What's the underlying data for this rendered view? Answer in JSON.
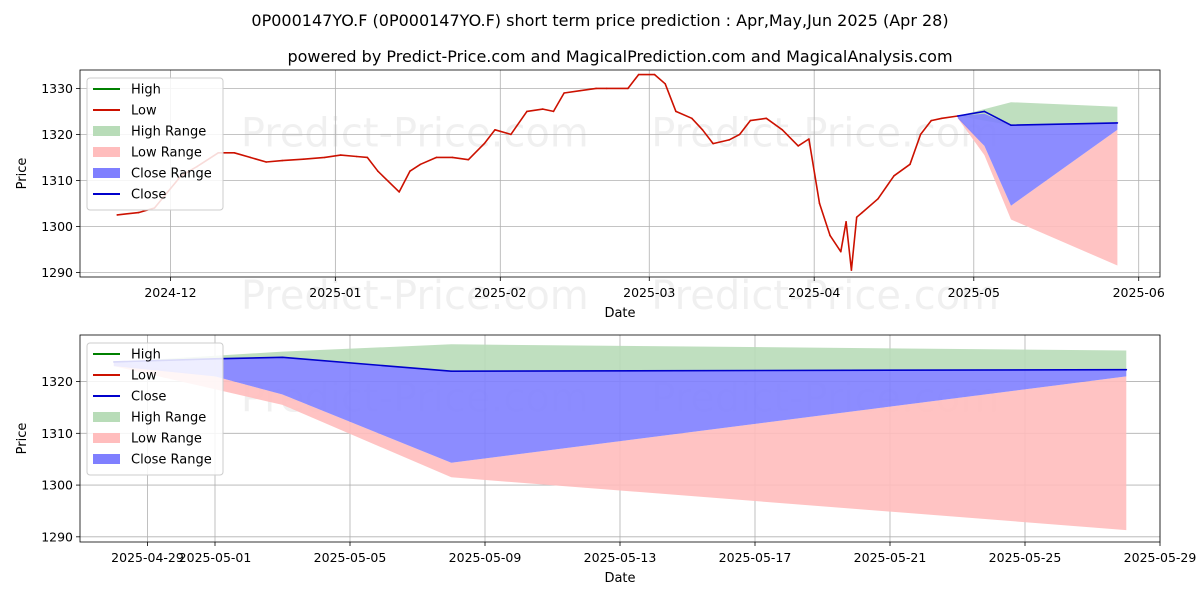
{
  "title": "0P000147YO.F (0P000147YO.F) short term price prediction : Apr,May,Jun 2025 (Apr 28)",
  "subtitle": "powered by Predict-Price.com and MagicalPrediction.com and MagicalAnalysis.com",
  "watermark": "Predict-Price.com",
  "colors": {
    "high": "#008000",
    "low": "#cc1100",
    "close": "#0000cc",
    "high_range": "#b8dcb8",
    "low_range": "#ffbdbd",
    "close_range": "#7f7fff"
  },
  "chart_data": [
    {
      "type": "line",
      "xlabel": "Date",
      "ylabel": "Price",
      "xlim": [
        "2024-11-14",
        "2025-06-05"
      ],
      "ylim": [
        1289,
        1334
      ],
      "yticks": [
        1290,
        1300,
        1310,
        1320,
        1330
      ],
      "xticks": [
        "2024-12",
        "2025-01",
        "2025-02",
        "2025-03",
        "2025-04",
        "2025-05",
        "2025-06"
      ],
      "grid": true,
      "legend_position": "top-left",
      "legend": [
        "High",
        "Low",
        "High Range",
        "Low Range",
        "Close Range",
        "Close"
      ],
      "series": [
        {
          "name": "Low",
          "x": [
            "2024-11-21",
            "2024-11-25",
            "2024-11-28",
            "2024-12-03",
            "2024-12-06",
            "2024-12-10",
            "2024-12-13",
            "2024-12-16",
            "2024-12-19",
            "2024-12-22",
            "2024-12-26",
            "2024-12-30",
            "2025-01-02",
            "2025-01-05",
            "2025-01-07",
            "2025-01-09",
            "2025-01-13",
            "2025-01-15",
            "2025-01-17",
            "2025-01-20",
            "2025-01-23",
            "2025-01-26",
            "2025-01-29",
            "2025-01-31",
            "2025-02-03",
            "2025-02-06",
            "2025-02-09",
            "2025-02-11",
            "2025-02-13",
            "2025-02-16",
            "2025-02-19",
            "2025-02-21",
            "2025-02-25",
            "2025-02-27",
            "2025-03-02",
            "2025-03-04",
            "2025-03-06",
            "2025-03-09",
            "2025-03-11",
            "2025-03-13",
            "2025-03-16",
            "2025-03-18",
            "2025-03-20",
            "2025-03-23",
            "2025-03-26",
            "2025-03-29",
            "2025-03-31",
            "2025-04-02",
            "2025-04-04",
            "2025-04-06",
            "2025-04-07",
            "2025-04-08",
            "2025-04-09",
            "2025-04-10",
            "2025-04-13",
            "2025-04-16",
            "2025-04-19",
            "2025-04-21",
            "2025-04-23",
            "2025-04-25",
            "2025-04-28"
          ],
          "values": [
            1302.5,
            1303.0,
            1304.0,
            1311.0,
            1313.0,
            1316.0,
            1316.0,
            1315.0,
            1314.0,
            1314.3,
            1314.6,
            1315.0,
            1315.5,
            1315.2,
            1315.0,
            1312.0,
            1307.5,
            1312.0,
            1313.5,
            1315.0,
            1315.0,
            1314.5,
            1318.0,
            1321.0,
            1320.0,
            1325.0,
            1325.5,
            1325.0,
            1329.0,
            1329.5,
            1330.0,
            1330.0,
            1330.0,
            1333.0,
            1333.0,
            1331.0,
            1325.0,
            1323.5,
            1321.0,
            1318.0,
            1318.8,
            1320.0,
            1323.0,
            1323.5,
            1321.0,
            1317.5,
            1319.0,
            1305.0,
            1298.0,
            1294.5,
            1301.0,
            1290.5,
            1302.0,
            1303.0,
            1306.0,
            1311.0,
            1313.5,
            1320.0,
            1323.0,
            1323.5,
            1324.0
          ]
        },
        {
          "name": "Close",
          "x": [
            "2025-04-28",
            "2025-05-03",
            "2025-05-08",
            "2025-05-28"
          ],
          "values": [
            1324.0,
            1325.0,
            1322.0,
            1322.5
          ]
        }
      ],
      "ranges": {
        "x": [
          "2025-04-28",
          "2025-05-03",
          "2025-05-08",
          "2025-05-28"
        ],
        "high_range": [
          [
            1324.0,
            1324.0
          ],
          [
            1323.0,
            1325.5
          ],
          [
            1322.0,
            1327.0
          ],
          [
            1322.5,
            1326.0
          ]
        ],
        "low_range": [
          [
            1323.5,
            1324.0
          ],
          [
            1315.5,
            1317.5
          ],
          [
            1301.5,
            1304.5
          ],
          [
            1291.5,
            1321.0
          ]
        ],
        "close_range": [
          [
            1323.5,
            1324.0
          ],
          [
            1317.5,
            1324.5
          ],
          [
            1304.5,
            1322.0
          ],
          [
            1321.0,
            1322.5
          ]
        ]
      }
    },
    {
      "type": "line",
      "xlabel": "Date",
      "ylabel": "Price",
      "xlim": [
        "2025-04-27",
        "2025-05-29"
      ],
      "ylim": [
        1289,
        1329
      ],
      "yticks": [
        1290,
        1300,
        1310,
        1320
      ],
      "xticks": [
        "2025-04-29",
        "2025-05-01",
        "2025-05-05",
        "2025-05-09",
        "2025-05-13",
        "2025-05-17",
        "2025-05-21",
        "2025-05-25",
        "2025-05-29"
      ],
      "grid": true,
      "legend_position": "top-left",
      "legend": [
        "High",
        "Low",
        "Close",
        "High Range",
        "Low Range",
        "Close Range"
      ],
      "series": [
        {
          "name": "Close",
          "x": [
            "2025-04-28",
            "2025-05-01",
            "2025-05-03",
            "2025-05-08",
            "2025-05-28"
          ],
          "values": [
            1323.8,
            1324.4,
            1324.7,
            1322.0,
            1322.3
          ]
        }
      ],
      "ranges": {
        "x": [
          "2025-04-28",
          "2025-05-01",
          "2025-05-03",
          "2025-05-08",
          "2025-05-28"
        ],
        "high_range": [
          [
            1323.8,
            1323.8
          ],
          [
            1324.4,
            1325.0
          ],
          [
            1324.7,
            1325.8
          ],
          [
            1322.0,
            1327.2
          ],
          [
            1322.3,
            1326.0
          ]
        ],
        "low_range": [
          [
            1323.0,
            1323.8
          ],
          [
            1318.5,
            1321.0
          ],
          [
            1315.5,
            1317.5
          ],
          [
            1301.5,
            1304.3
          ],
          [
            1291.3,
            1321.0
          ]
        ],
        "close_range": [
          [
            1323.0,
            1323.8
          ],
          [
            1321.0,
            1324.4
          ],
          [
            1317.5,
            1324.7
          ],
          [
            1304.3,
            1322.0
          ],
          [
            1321.0,
            1322.3
          ]
        ]
      }
    }
  ]
}
